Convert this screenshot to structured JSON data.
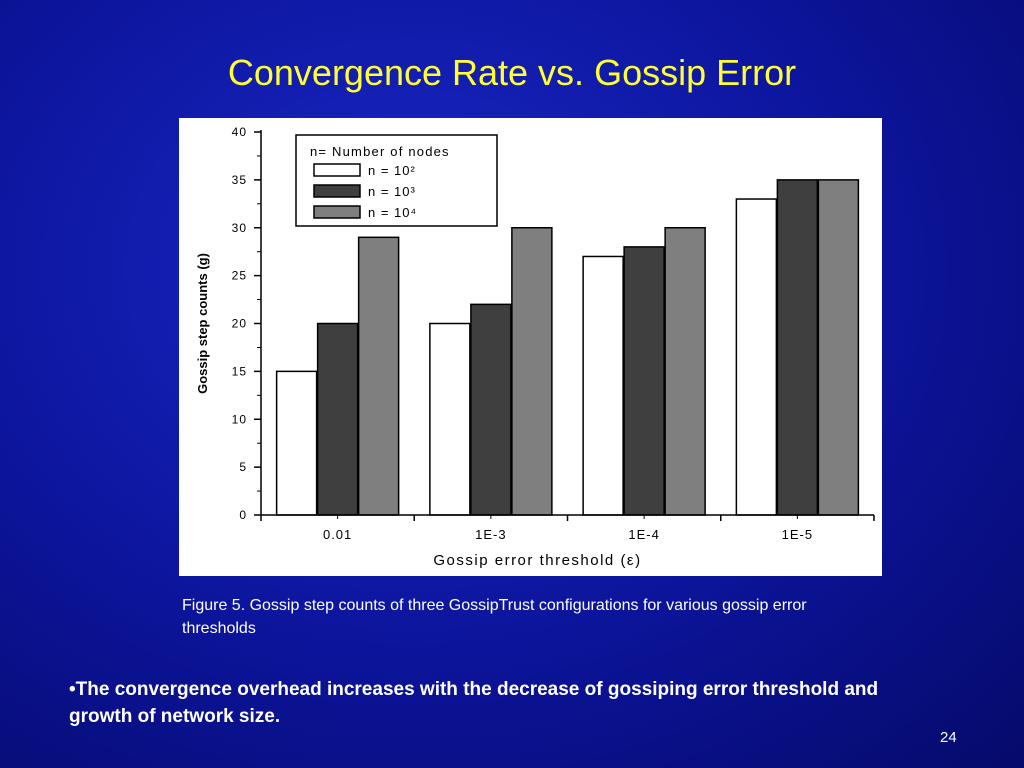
{
  "slide": {
    "title": "Convergence Rate vs. Gossip Error",
    "caption": "Figure 5. Gossip step counts of three GossipTrust configurations for various gossip error thresholds",
    "bullet": "•The convergence overhead increases with the decrease of gossiping error threshold and growth of network size.",
    "page_number": "24"
  },
  "colors": {
    "title": "#ffff33",
    "series": [
      "#ffffff",
      "#3f3f3f",
      "#7f7f7f"
    ]
  },
  "chart_data": {
    "type": "bar",
    "title": "",
    "xlabel": "Gossip error threshold (ε)",
    "ylabel": "Gossip step counts (g)",
    "categories": [
      "0.01",
      "1E-3",
      "1E-4",
      "1E-5"
    ],
    "ylim": [
      0,
      40
    ],
    "yticks": [
      "0",
      "5",
      "10",
      "15",
      "20",
      "25",
      "30",
      "35",
      "40"
    ],
    "legend": {
      "title": "n= Number of nodes",
      "placement": "top-left",
      "entries": [
        "n = 10²",
        "n = 10³",
        "n = 10⁴"
      ]
    },
    "series": [
      {
        "name": "n = 10²",
        "values": [
          15,
          20,
          27,
          33
        ]
      },
      {
        "name": "n = 10³",
        "values": [
          20,
          22,
          28,
          35
        ]
      },
      {
        "name": "n = 10⁴",
        "values": [
          29,
          30,
          30,
          35
        ]
      }
    ]
  }
}
